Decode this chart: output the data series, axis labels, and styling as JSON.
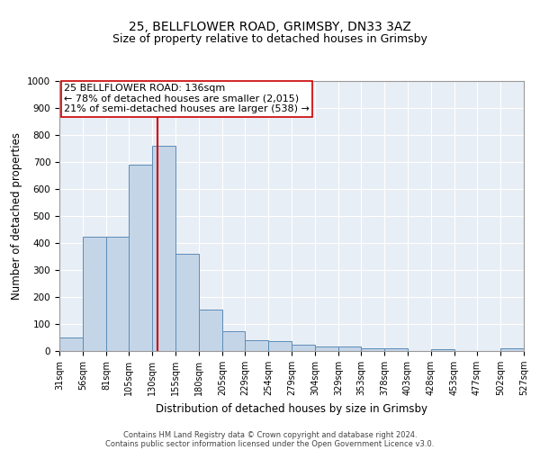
{
  "title1": "25, BELLFLOWER ROAD, GRIMSBY, DN33 3AZ",
  "title2": "Size of property relative to detached houses in Grimsby",
  "xlabel": "Distribution of detached houses by size in Grimsby",
  "ylabel": "Number of detached properties",
  "footnote1": "Contains HM Land Registry data © Crown copyright and database right 2024.",
  "footnote2": "Contains public sector information licensed under the Open Government Licence v3.0.",
  "annotation_line1": "25 BELLFLOWER ROAD: 136sqm",
  "annotation_line2": "← 78% of detached houses are smaller (2,015)",
  "annotation_line3": "21% of semi-detached houses are larger (538) →",
  "bar_color": "#c5d5e8",
  "bar_edge_color": "#5b8db8",
  "ref_line_color": "#cc0000",
  "ref_line_x": 136,
  "bin_edges": [
    31,
    56,
    81,
    105,
    130,
    155,
    180,
    205,
    229,
    254,
    279,
    304,
    329,
    353,
    378,
    403,
    428,
    453,
    477,
    502,
    527
  ],
  "bar_heights": [
    50,
    425,
    425,
    690,
    760,
    360,
    155,
    75,
    40,
    38,
    25,
    17,
    17,
    10,
    10,
    0,
    8,
    0,
    0,
    10
  ],
  "ylim": [
    0,
    1000
  ],
  "yticks": [
    0,
    100,
    200,
    300,
    400,
    500,
    600,
    700,
    800,
    900,
    1000
  ],
  "plot_bg_color": "#e8eef5",
  "title1_fontsize": 10,
  "title2_fontsize": 9,
  "xlabel_fontsize": 8.5,
  "ylabel_fontsize": 8.5,
  "annot_fontsize": 8,
  "tick_fontsize": 7,
  "ytick_fontsize": 7.5,
  "footnote_fontsize": 6
}
